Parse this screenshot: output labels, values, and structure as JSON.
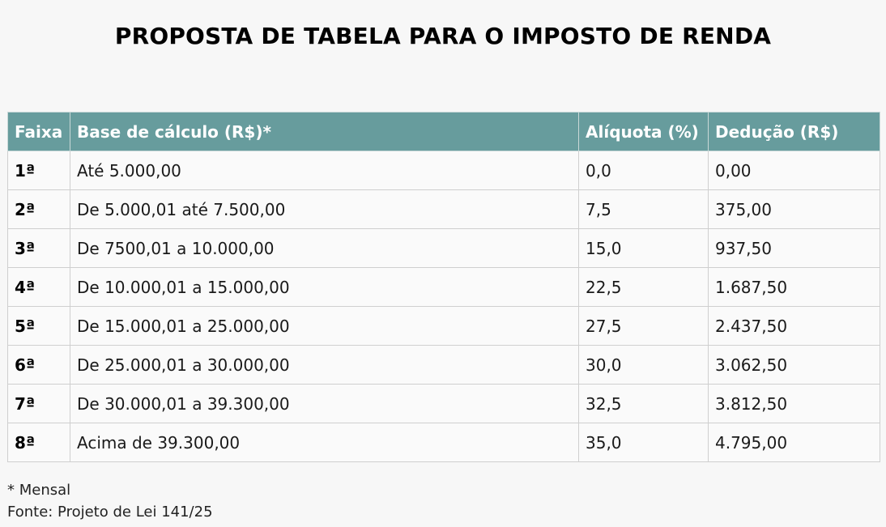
{
  "title": "PROPOSTA DE TABELA PARA O IMPOSTO DE RENDA",
  "table": {
    "headers": [
      "Faixa",
      "Base de cálculo (R$)*",
      "Alíquota (%)",
      "Dedução (R$)"
    ],
    "rows": [
      [
        "1ª",
        "Até 5.000,00",
        "0,0",
        "0,00"
      ],
      [
        "2ª",
        "De 5.000,01 até 7.500,00",
        "7,5",
        "375,00"
      ],
      [
        "3ª",
        "De 7500,01 a 10.000,00",
        "15,0",
        "937,50"
      ],
      [
        "4ª",
        "De 10.000,01 a 15.000,00",
        "22,5",
        "1.687,50"
      ],
      [
        "5ª",
        "De 15.000,01 a 25.000,00",
        "27,5",
        "2.437,50"
      ],
      [
        "6ª",
        "De 25.000,01 a 30.000,00",
        "30,0",
        "3.062,50"
      ],
      [
        "7ª",
        "De 30.000,01 a 39.300,00",
        "32,5",
        "3.812,50"
      ],
      [
        "8ª",
        "Acima de 39.300,00",
        "35,0",
        "4.795,00"
      ]
    ]
  },
  "notes": {
    "footnote": "* Mensal",
    "source": "Fonte: Projeto de Lei 141/25"
  },
  "colors": {
    "header_bg": "#679c9d",
    "header_text": "#ffffff",
    "page_bg": "#f7f7f7"
  }
}
